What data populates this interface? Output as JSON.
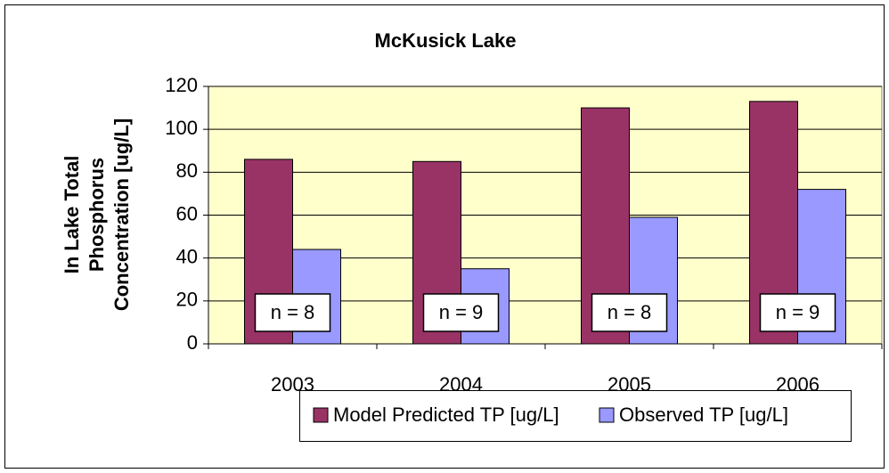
{
  "chart_data": {
    "type": "bar",
    "title": "McKusick Lake",
    "ylabel": [
      "In Lake Total",
      "Phosphorus",
      "Concentration [ug/L]"
    ],
    "categories": [
      "2003",
      "2004",
      "2005",
      "2006"
    ],
    "series": [
      {
        "name": "Model Predicted TP [ug/L]",
        "color": "#993366",
        "values": [
          86,
          85,
          110,
          113
        ]
      },
      {
        "name": "Observed TP [ug/L]",
        "color": "#9999ff",
        "values": [
          44,
          35,
          59,
          72
        ]
      }
    ],
    "annotations": [
      "n = 8",
      "n = 9",
      "n = 8",
      "n = 9"
    ],
    "ylim": [
      0,
      120
    ],
    "yticks": [
      0,
      20,
      40,
      60,
      80,
      100,
      120
    ],
    "grid": true,
    "background": "#ffffcc",
    "legend": "bottom"
  }
}
